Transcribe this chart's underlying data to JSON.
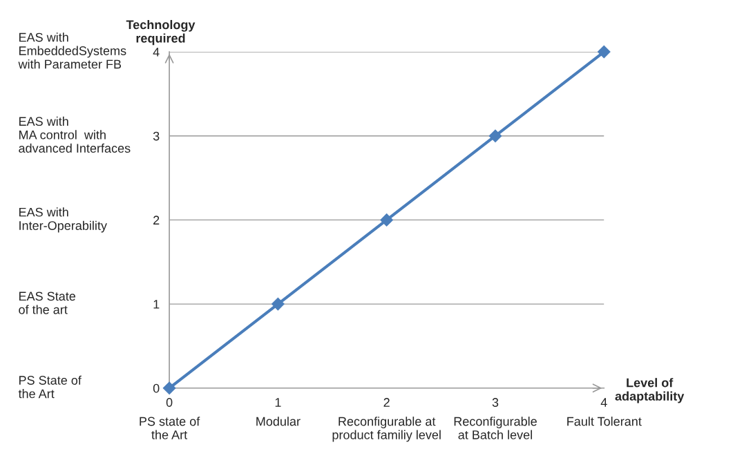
{
  "chart_data": {
    "type": "line",
    "xlabel": "Level of\nadaptability",
    "ylabel": "Technology\nrequired",
    "x": [
      0,
      1,
      2,
      3,
      4
    ],
    "series": [
      {
        "color": "#4a7ebb",
        "values": [
          0,
          1,
          2,
          3,
          4
        ]
      }
    ],
    "xlim": [
      0,
      4
    ],
    "ylim": [
      0,
      4
    ],
    "xticks": [
      0,
      1,
      2,
      3,
      4
    ],
    "yticks": [
      0,
      1,
      2,
      3,
      4
    ],
    "grid": "y",
    "marker": "diamond",
    "line_style": "solid",
    "annotations": [
      "PS state of\nthe Art",
      "Modular",
      "Reconfigurable at\nproduct familiy level",
      "Reconfigurable\nat Batch level",
      "Fault Tolerant",
      "PS State of\nthe Art",
      "EAS State\nof the art",
      "EAS with\nInter-Operability",
      "EAS with\nMA control  with\nadvanced Interfaces",
      "EAS with\nEmbeddedSystems\nwith Parameter FB"
    ]
  }
}
